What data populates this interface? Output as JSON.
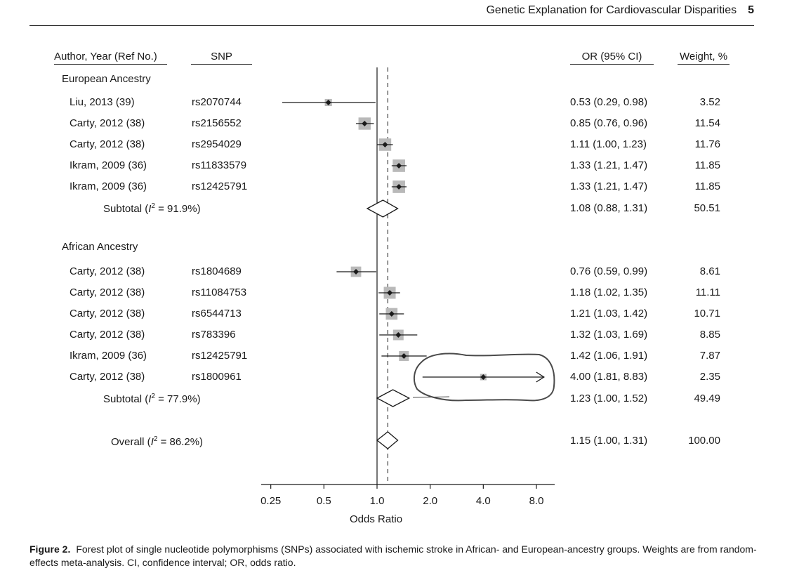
{
  "running_head": {
    "title": "Genetic Explanation for Cardiovascular Disparities",
    "page_number": "5"
  },
  "columns": {
    "author": "Author, Year (Ref No.)",
    "snp": "SNP",
    "or": "OR (95% CI)",
    "weight": "Weight, %"
  },
  "groups": {
    "european": "European Ancestry",
    "european_subtotal_prefix": "Subtotal (",
    "european_subtotal_i": "I",
    "european_subtotal_sup": "2",
    "european_subtotal_suffix": " = 91.9%)",
    "african": "African Ancestry",
    "african_subtotal_prefix": "Subtotal (",
    "african_subtotal_i": "I",
    "african_subtotal_sup": "2",
    "african_subtotal_suffix": " = 77.9%)",
    "overall_prefix": "Overall (",
    "overall_i": "I",
    "overall_sup": "2",
    "overall_suffix": " = 86.2%)"
  },
  "chart_data": {
    "type": "forest",
    "xlabel": "Odds Ratio",
    "xscale": "log",
    "xlim": [
      0.25,
      11.3
    ],
    "xticks": [
      0.25,
      0.5,
      1.0,
      2.0,
      4.0,
      8.0
    ],
    "xtick_labels": [
      "0.25",
      "0.5",
      "1.0",
      "2.0",
      "4.0",
      "8.0"
    ],
    "null_line": 1.0,
    "overall_line": 1.15,
    "studies": [
      {
        "group": "European",
        "author": "Liu, 2013 (39)",
        "snp": "rs2070744",
        "or": 0.53,
        "lo": 0.29,
        "hi": 0.98,
        "or_text": "0.53 (0.29, 0.98)",
        "weight": 3.52,
        "weight_text": "3.52"
      },
      {
        "group": "European",
        "author": "Carty, 2012 (38)",
        "snp": "rs2156552",
        "or": 0.85,
        "lo": 0.76,
        "hi": 0.96,
        "or_text": "0.85 (0.76, 0.96)",
        "weight": 11.54,
        "weight_text": "11.54"
      },
      {
        "group": "European",
        "author": "Carty, 2012 (38)",
        "snp": "rs2954029",
        "or": 1.11,
        "lo": 1.0,
        "hi": 1.23,
        "or_text": "1.11 (1.00, 1.23)",
        "weight": 11.76,
        "weight_text": "11.76"
      },
      {
        "group": "European",
        "author": "Ikram, 2009 (36)",
        "snp": "rs11833579",
        "or": 1.33,
        "lo": 1.21,
        "hi": 1.47,
        "or_text": "1.33 (1.21, 1.47)",
        "weight": 11.85,
        "weight_text": "11.85"
      },
      {
        "group": "European",
        "author": "Ikram, 2009 (36)",
        "snp": "rs12425791",
        "or": 1.33,
        "lo": 1.21,
        "hi": 1.47,
        "or_text": "1.33 (1.21, 1.47)",
        "weight": 11.85,
        "weight_text": "11.85"
      },
      {
        "group": "African",
        "author": "Carty, 2012 (38)",
        "snp": "rs1804689",
        "or": 0.76,
        "lo": 0.59,
        "hi": 0.99,
        "or_text": "0.76 (0.59, 0.99)",
        "weight": 8.61,
        "weight_text": "8.61"
      },
      {
        "group": "African",
        "author": "Carty, 2012 (38)",
        "snp": "rs11084753",
        "or": 1.18,
        "lo": 1.02,
        "hi": 1.35,
        "or_text": "1.18 (1.02, 1.35)",
        "weight": 11.11,
        "weight_text": "11.11"
      },
      {
        "group": "African",
        "author": "Carty, 2012 (38)",
        "snp": "rs6544713",
        "or": 1.21,
        "lo": 1.03,
        "hi": 1.42,
        "or_text": "1.21 (1.03, 1.42)",
        "weight": 10.71,
        "weight_text": "10.71"
      },
      {
        "group": "African",
        "author": "Carty, 2012 (38)",
        "snp": "rs783396",
        "or": 1.32,
        "lo": 1.03,
        "hi": 1.69,
        "or_text": "1.32 (1.03, 1.69)",
        "weight": 8.85,
        "weight_text": "8.85"
      },
      {
        "group": "African",
        "author": "Ikram, 2009 (36)",
        "snp": "rs12425791",
        "or": 1.42,
        "lo": 1.06,
        "hi": 1.91,
        "or_text": "1.42 (1.06, 1.91)",
        "weight": 7.87,
        "weight_text": "7.87"
      },
      {
        "group": "African",
        "author": "Carty, 2012 (38)",
        "snp": "rs1800961",
        "or": 4.0,
        "lo": 1.81,
        "hi": 8.83,
        "or_text": "4.00 (1.81, 8.83)",
        "weight": 2.35,
        "weight_text": "2.35",
        "arrow_right": true,
        "highlighted": true
      }
    ],
    "subtotals": [
      {
        "label": "European",
        "or": 1.08,
        "lo": 0.88,
        "hi": 1.31,
        "or_text": "1.08 (0.88, 1.31)",
        "weight_text": "50.51"
      },
      {
        "label": "African",
        "or": 1.23,
        "lo": 1.0,
        "hi": 1.52,
        "or_text": "1.23 (1.00, 1.52)",
        "weight_text": "49.49"
      }
    ],
    "overall": {
      "or": 1.15,
      "lo": 1.0,
      "hi": 1.31,
      "or_text": "1.15 (1.00, 1.31)",
      "weight_text": "100.00"
    }
  },
  "caption": {
    "label": "Figure 2.",
    "text": "Forest plot of single nucleotide polymorphisms (SNPs) associated with ischemic stroke in African- and European-ancestry groups. Weights are from random-effects meta-analysis. CI, confidence interval; OR, odds ratio."
  },
  "colors": {
    "box": "#b9b9b9",
    "line": "#1a1a1a",
    "annotation": "#4a4a4a"
  }
}
